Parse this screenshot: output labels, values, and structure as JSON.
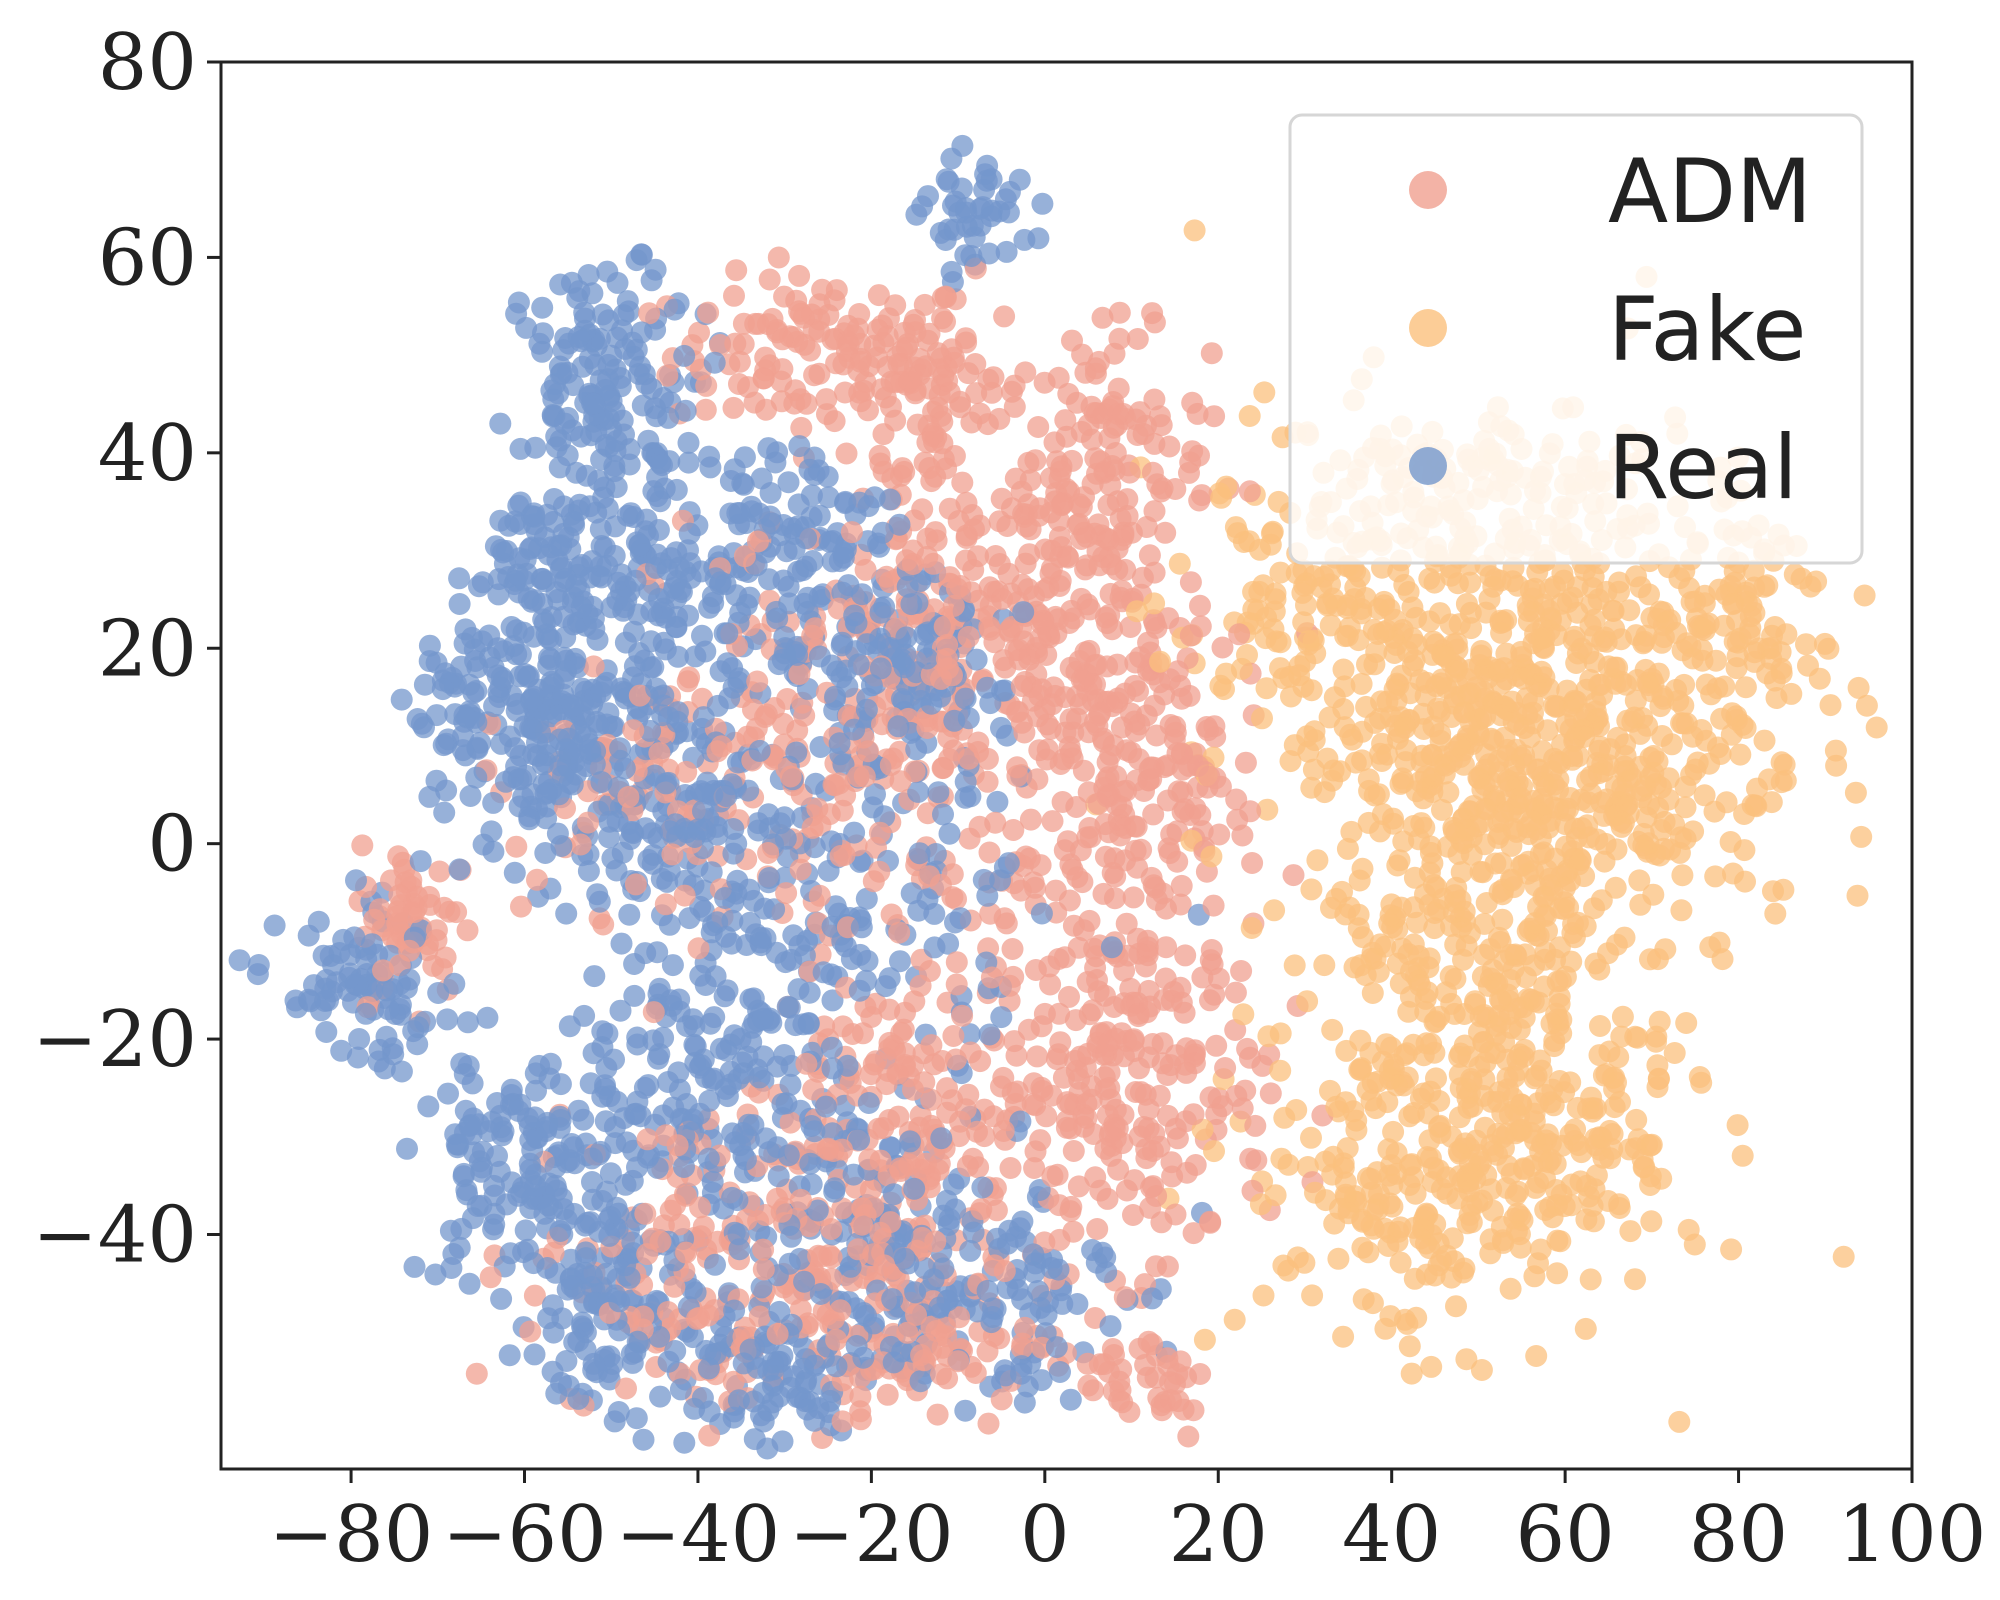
{
  "chart_data": {
    "type": "scatter",
    "title": "",
    "xlabel": "",
    "ylabel": "",
    "xlim": [
      -95,
      100
    ],
    "ylim": [
      -64,
      80
    ],
    "x_ticks": [
      {
        "value": -80,
        "label": "−80"
      },
      {
        "value": -60,
        "label": "−60"
      },
      {
        "value": -40,
        "label": "−40"
      },
      {
        "value": -20,
        "label": "−20"
      },
      {
        "value": 0,
        "label": "0"
      },
      {
        "value": 20,
        "label": "20"
      },
      {
        "value": 40,
        "label": "40"
      },
      {
        "value": 60,
        "label": "60"
      },
      {
        "value": 80,
        "label": "80"
      },
      {
        "value": 100,
        "label": "100"
      }
    ],
    "y_ticks": [
      {
        "value": 80,
        "label": "80"
      },
      {
        "value": 60,
        "label": "60"
      },
      {
        "value": 40,
        "label": "40"
      },
      {
        "value": 20,
        "label": "20"
      },
      {
        "value": 0,
        "label": "0"
      },
      {
        "value": -20,
        "label": "−20"
      },
      {
        "value": -40,
        "label": "−40"
      }
    ],
    "grid": false,
    "legend": {
      "placement": "top-right"
    },
    "series": [
      {
        "name": "ADM",
        "color": "#f0a090",
        "clusters": [
          {
            "cx": -25,
            "cy": 50,
            "sx": 9,
            "sy": 4,
            "n": 140
          },
          {
            "cx": -12,
            "cy": 45,
            "sx": 5,
            "sy": 6,
            "n": 60
          },
          {
            "cx": 7,
            "cy": 38,
            "sx": 6,
            "sy": 7,
            "n": 140
          },
          {
            "cx": -10,
            "cy": 22,
            "sx": 8,
            "sy": 9,
            "n": 160
          },
          {
            "cx": 5,
            "cy": 12,
            "sx": 8,
            "sy": 12,
            "n": 240
          },
          {
            "cx": -25,
            "cy": 10,
            "sx": 10,
            "sy": 12,
            "n": 160
          },
          {
            "cx": -45,
            "cy": 5,
            "sx": 10,
            "sy": 6,
            "n": 80
          },
          {
            "cx": 10,
            "cy": -25,
            "sx": 8,
            "sy": 9,
            "n": 220
          },
          {
            "cx": -15,
            "cy": -30,
            "sx": 10,
            "sy": 10,
            "n": 220
          },
          {
            "cx": -40,
            "cy": -42,
            "sx": 10,
            "sy": 8,
            "n": 140
          },
          {
            "cx": -20,
            "cy": -50,
            "sx": 10,
            "sy": 5,
            "n": 120
          },
          {
            "cx": 12,
            "cy": -55,
            "sx": 4,
            "sy": 3,
            "n": 40
          },
          {
            "cx": -73,
            "cy": -8,
            "sx": 3,
            "sy": 4,
            "n": 60
          },
          {
            "cx": 15,
            "cy": 5,
            "sx": 5,
            "sy": 10,
            "n": 80
          }
        ]
      },
      {
        "name": "Fake",
        "color": "#fbc07d",
        "clusters": [
          {
            "cx": 45,
            "cy": 20,
            "sx": 14,
            "sy": 12,
            "n": 420
          },
          {
            "cx": 65,
            "cy": 15,
            "sx": 12,
            "sy": 12,
            "n": 320
          },
          {
            "cx": 55,
            "cy": 2,
            "sx": 10,
            "sy": 10,
            "n": 220
          },
          {
            "cx": 82,
            "cy": 23,
            "sx": 5,
            "sy": 5,
            "n": 60
          },
          {
            "cx": 48,
            "cy": -15,
            "sx": 10,
            "sy": 8,
            "n": 180
          },
          {
            "cx": 45,
            "cy": -35,
            "sx": 11,
            "sy": 8,
            "n": 240
          },
          {
            "cx": 60,
            "cy": -30,
            "sx": 8,
            "sy": 8,
            "n": 120
          },
          {
            "cx": 50,
            "cy": 38,
            "sx": 10,
            "sy": 3,
            "n": 60
          },
          {
            "cx": 30,
            "cy": 25,
            "sx": 5,
            "sy": 5,
            "n": 50
          }
        ]
      },
      {
        "name": "Real",
        "color": "#7497cc",
        "clusters": [
          {
            "cx": -8,
            "cy": 64,
            "sx": 3,
            "sy": 3,
            "n": 45
          },
          {
            "cx": -50,
            "cy": 47,
            "sx": 5,
            "sy": 6,
            "n": 150
          },
          {
            "cx": -58,
            "cy": 28,
            "sx": 4,
            "sy": 4,
            "n": 70
          },
          {
            "cx": -45,
            "cy": 28,
            "sx": 8,
            "sy": 6,
            "n": 140
          },
          {
            "cx": -30,
            "cy": 30,
            "sx": 6,
            "sy": 7,
            "n": 110
          },
          {
            "cx": -17,
            "cy": 17,
            "sx": 6,
            "sy": 5,
            "n": 140
          },
          {
            "cx": -55,
            "cy": 12,
            "sx": 6,
            "sy": 5,
            "n": 160
          },
          {
            "cx": -42,
            "cy": 5,
            "sx": 10,
            "sy": 7,
            "n": 180
          },
          {
            "cx": -67,
            "cy": 14,
            "sx": 3,
            "sy": 5,
            "n": 50
          },
          {
            "cx": -25,
            "cy": -10,
            "sx": 12,
            "sy": 8,
            "n": 160
          },
          {
            "cx": -78,
            "cy": -15,
            "sx": 5,
            "sy": 4,
            "n": 90
          },
          {
            "cx": -62,
            "cy": -33,
            "sx": 5,
            "sy": 6,
            "n": 110
          },
          {
            "cx": -50,
            "cy": -45,
            "sx": 6,
            "sy": 6,
            "n": 140
          },
          {
            "cx": -40,
            "cy": -25,
            "sx": 8,
            "sy": 6,
            "n": 140
          },
          {
            "cx": -22,
            "cy": -42,
            "sx": 10,
            "sy": 8,
            "n": 200
          },
          {
            "cx": -5,
            "cy": -45,
            "sx": 7,
            "sy": 6,
            "n": 80
          },
          {
            "cx": -35,
            "cy": -55,
            "sx": 8,
            "sy": 4,
            "n": 70
          }
        ]
      }
    ]
  }
}
